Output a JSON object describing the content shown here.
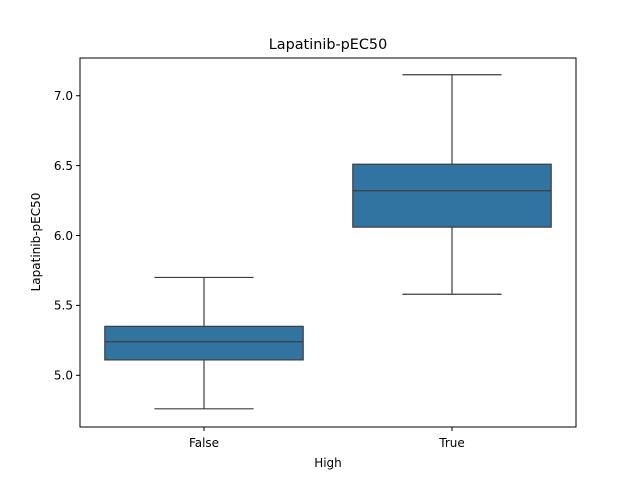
{
  "chart_data": {
    "type": "box",
    "title": "Lapatinib-pEC50",
    "xlabel": "High",
    "ylabel": "Lapatinib-pEC50",
    "categories": [
      "False",
      "True"
    ],
    "boxes": [
      {
        "category": "False",
        "whisker_low": 4.76,
        "q1": 5.11,
        "median": 5.24,
        "q3": 5.35,
        "whisker_high": 5.7
      },
      {
        "category": "True",
        "whisker_low": 5.58,
        "q1": 6.06,
        "median": 6.32,
        "q3": 6.51,
        "whisker_high": 7.15
      }
    ],
    "ylim": [
      4.63,
      7.27
    ],
    "yticks": [
      5.0,
      5.5,
      6.0,
      6.5,
      7.0
    ],
    "ytick_labels": [
      "5.0",
      "5.5",
      "6.0",
      "6.5",
      "7.0"
    ],
    "box_color": "#3274a1",
    "line_color": "#3d3d3d",
    "grid": false
  }
}
